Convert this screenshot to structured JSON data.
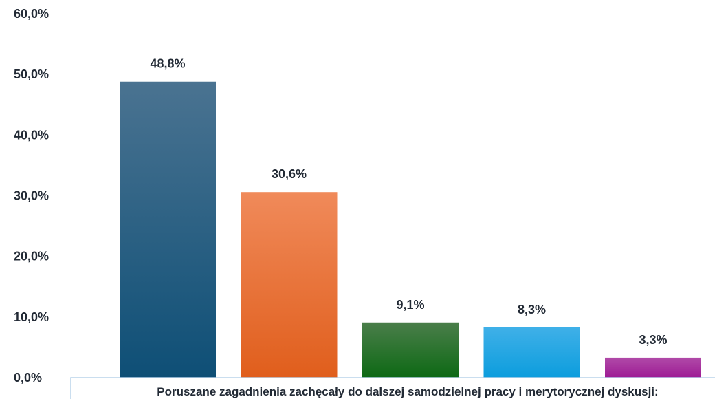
{
  "chart_data": {
    "type": "bar",
    "categories": [
      "",
      "",
      "",
      "",
      ""
    ],
    "values": [
      48.8,
      30.6,
      9.1,
      8.3,
      3.3
    ],
    "data_labels": [
      "48,8%",
      "30,6%",
      "9,1%",
      "8,3%",
      "3,3%"
    ],
    "ylim": [
      0,
      60
    ],
    "yticks": [
      0,
      10,
      20,
      30,
      40,
      50,
      60
    ],
    "ytick_labels": [
      "0,0%",
      "10,0%",
      "20,0%",
      "30,0%",
      "40,0%",
      "50,0%",
      "60,0%"
    ],
    "xlabel": "Poruszane zagadnienia zachęcały do dalszej samodzielnej pracy i merytorycznej dyskusji:",
    "grid": false,
    "legend": "none",
    "colors": [
      [
        "#4a7391",
        "#0e4f76"
      ],
      [
        "#f08a5a",
        "#e05e1c"
      ],
      [
        "#4a7e4a",
        "#0d6914"
      ],
      [
        "#3fb0e8",
        "#0c9ddd"
      ],
      [
        "#b04aa8",
        "#9d1b94"
      ]
    ]
  }
}
